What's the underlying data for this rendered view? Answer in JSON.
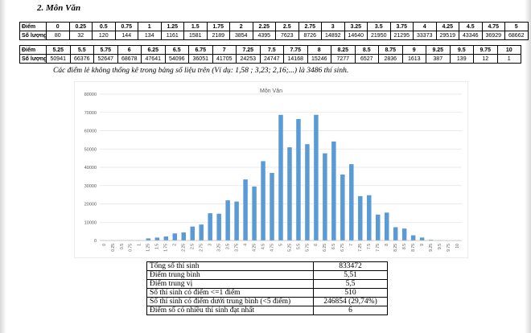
{
  "heading": "2.  Môn Văn",
  "table1": {
    "header_label": "Điểm",
    "count_label": "Số lượng",
    "scores": [
      "0",
      "0.25",
      "0.5",
      "0.75",
      "1",
      "1.25",
      "1.5",
      "1.75",
      "2",
      "2.25",
      "2.5",
      "2.75",
      "3",
      "3.25",
      "3.5",
      "3.75",
      "4",
      "4.25",
      "4.5",
      "4.75",
      "5"
    ],
    "counts": [
      "80",
      "32",
      "120",
      "144",
      "134",
      "1161",
      "1581",
      "2189",
      "3854",
      "4395",
      "7623",
      "8726",
      "14892",
      "14640",
      "21950",
      "21295",
      "33373",
      "29519",
      "43346",
      "36929",
      "68662"
    ]
  },
  "table2": {
    "header_label": "Điểm",
    "count_label": "Số lượng",
    "scores": [
      "5.25",
      "5.5",
      "5.75",
      "6",
      "6.25",
      "6.5",
      "6.75",
      "7",
      "7.25",
      "7.5",
      "7.75",
      "8",
      "8.25",
      "8.5",
      "8.75",
      "9",
      "9.25",
      "9.5",
      "9.75",
      "10"
    ],
    "counts": [
      "50941",
      "66376",
      "52647",
      "68678",
      "47641",
      "54096",
      "36051",
      "41705",
      "24253",
      "24747",
      "14168",
      "15246",
      "7277",
      "6527",
      "2836",
      "1613",
      "387",
      "139",
      "12",
      "1"
    ]
  },
  "note": "Các điểm lẻ không thống kê trong bảng số liệu trên (Ví dụ: 1,58 ; 3,23; 2,16;...) là 3486 thí sinh.",
  "chart_data": {
    "type": "bar",
    "title": "Môn Văn",
    "categories": [
      "0",
      "0.25",
      "0.5",
      "0.75",
      "1",
      "1.25",
      "1.5",
      "1.75",
      "2",
      "2.25",
      "2.5",
      "2.75",
      "3",
      "3.25",
      "3.5",
      "3.75",
      "4",
      "4.25",
      "4.5",
      "4.75",
      "5",
      "5.25",
      "5.5",
      "5.75",
      "6",
      "6.25",
      "6.5",
      "6.75",
      "7",
      "7.25",
      "7.5",
      "7.75",
      "8",
      "8.25",
      "8.5",
      "8.75",
      "9",
      "9.25",
      "9.5",
      "9.75",
      "10"
    ],
    "values": [
      80,
      32,
      120,
      144,
      134,
      1161,
      1581,
      2189,
      3854,
      4395,
      7623,
      8726,
      14892,
      14640,
      21950,
      21295,
      33373,
      29519,
      43346,
      36929,
      68662,
      50941,
      66376,
      52647,
      68678,
      47641,
      54096,
      36051,
      41705,
      24253,
      24747,
      14168,
      15246,
      7277,
      6527,
      2836,
      1613,
      387,
      139,
      12,
      1
    ],
    "yticks": [
      "80000",
      "70000",
      "60000",
      "50000",
      "40000",
      "30000",
      "20000",
      "10000",
      "0"
    ],
    "ylim": [
      0,
      80000
    ],
    "xlabel": "",
    "ylabel": "",
    "grid": true,
    "bar_color": "#5b9bd5"
  },
  "stats": [
    {
      "label": "Tổng số thí sinh",
      "value": "833472"
    },
    {
      "label": "Điểm trung bình",
      "value": "5,51"
    },
    {
      "label": "Điểm trung vị",
      "value": "5,5"
    },
    {
      "label": "Số thí sinh có điểm <=1 điểm",
      "value": "510"
    },
    {
      "label": "Số thí sinh có điểm dưới trung bình (<5 điểm)",
      "value": "246854 (29,74%)"
    },
    {
      "label": "Điểm số có nhiều thí sinh đạt nhất",
      "value": "6"
    }
  ]
}
